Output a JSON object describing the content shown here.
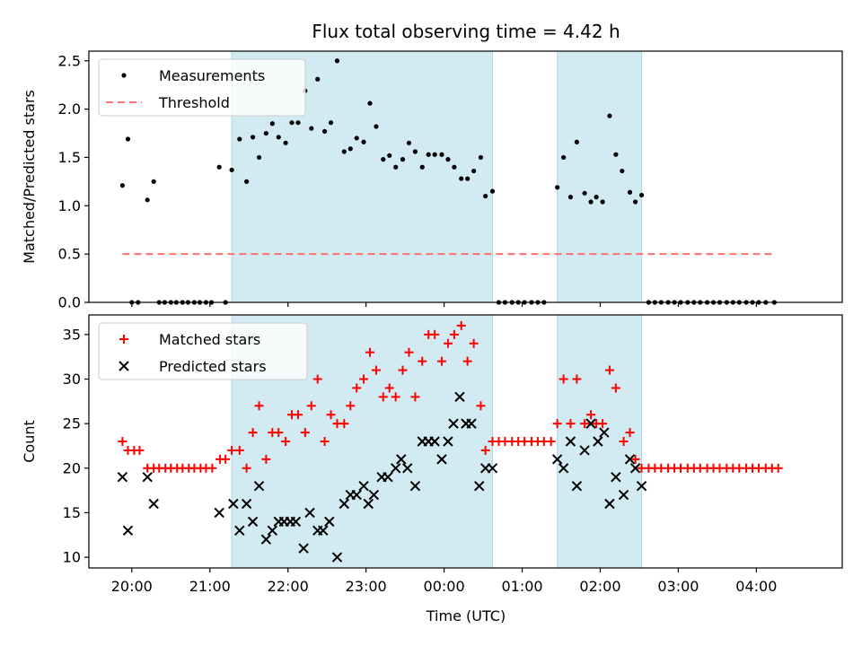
{
  "title": "Flux total observing time = 4.42 h",
  "colors": {
    "measurement": "#000000",
    "threshold": "#ff7070",
    "matched": "#ff0000",
    "predicted": "#000000",
    "span": "#add8e6"
  },
  "x_ticks": [
    "20:00",
    "21:00",
    "22:00",
    "23:00",
    "00:00",
    "01:00",
    "02:00",
    "03:00",
    "04:00"
  ],
  "xlabel": "Time (UTC)",
  "chart_data": [
    {
      "type": "scatter",
      "title": "Flux total observing time = 4.42 h",
      "xlabel": "",
      "ylabel": "Matched/Predicted stars",
      "x_unit": "hours since 20:00 UTC",
      "xlim": [
        -0.55,
        9.1
      ],
      "ylim": [
        0,
        2.6
      ],
      "y_ticks": [
        0.0,
        0.5,
        1.0,
        1.5,
        2.0,
        2.5
      ],
      "y_tick_labels": [
        "0.0",
        "0.5",
        "1.0",
        "1.5",
        "2.0",
        "2.5"
      ],
      "shaded_spans": [
        [
          1.28,
          4.62
        ],
        [
          5.45,
          6.53
        ]
      ],
      "legend": {
        "location": "upper left",
        "entries": [
          "Measurements",
          "Threshold"
        ]
      },
      "threshold": {
        "name": "Threshold",
        "y": 0.5,
        "x_range": [
          -0.12,
          8.2
        ]
      },
      "series": [
        {
          "name": "Measurements",
          "points": [
            [
              -0.12,
              1.21
            ],
            [
              -0.05,
              1.69
            ],
            [
              0.0,
              0.0
            ],
            [
              0.08,
              0.0
            ],
            [
              0.2,
              1.06
            ],
            [
              0.28,
              1.25
            ],
            [
              0.35,
              0.0
            ],
            [
              0.42,
              0.0
            ],
            [
              0.5,
              0.0
            ],
            [
              0.57,
              0.0
            ],
            [
              0.65,
              0.0
            ],
            [
              0.72,
              0.0
            ],
            [
              0.8,
              0.0
            ],
            [
              0.87,
              0.0
            ],
            [
              0.95,
              0.0
            ],
            [
              1.02,
              0.0
            ],
            [
              1.12,
              1.4
            ],
            [
              1.2,
              0.0
            ],
            [
              1.28,
              1.37
            ],
            [
              1.38,
              1.69
            ],
            [
              1.47,
              1.25
            ],
            [
              1.55,
              1.71
            ],
            [
              1.63,
              1.5
            ],
            [
              1.72,
              1.75
            ],
            [
              1.8,
              1.85
            ],
            [
              1.88,
              1.71
            ],
            [
              1.97,
              1.65
            ],
            [
              2.05,
              1.86
            ],
            [
              2.13,
              1.86
            ],
            [
              2.22,
              2.19
            ],
            [
              2.3,
              1.8
            ],
            [
              2.38,
              2.31
            ],
            [
              2.47,
              1.77
            ],
            [
              2.55,
              1.86
            ],
            [
              2.63,
              2.5
            ],
            [
              2.72,
              1.56
            ],
            [
              2.8,
              1.59
            ],
            [
              2.88,
              1.7
            ],
            [
              2.97,
              1.66
            ],
            [
              3.05,
              2.06
            ],
            [
              3.13,
              1.82
            ],
            [
              3.22,
              1.48
            ],
            [
              3.3,
              1.52
            ],
            [
              3.38,
              1.4
            ],
            [
              3.47,
              1.48
            ],
            [
              3.55,
              1.65
            ],
            [
              3.63,
              1.56
            ],
            [
              3.72,
              1.4
            ],
            [
              3.8,
              1.53
            ],
            [
              3.88,
              1.53
            ],
            [
              3.97,
              1.53
            ],
            [
              4.05,
              1.48
            ],
            [
              4.13,
              1.4
            ],
            [
              4.22,
              1.28
            ],
            [
              4.3,
              1.28
            ],
            [
              4.38,
              1.36
            ],
            [
              4.47,
              1.5
            ],
            [
              4.53,
              1.1
            ],
            [
              4.62,
              1.15
            ],
            [
              4.7,
              0.0
            ],
            [
              4.78,
              0.0
            ],
            [
              4.87,
              0.0
            ],
            [
              4.95,
              0.0
            ],
            [
              5.03,
              0.0
            ],
            [
              5.12,
              0.0
            ],
            [
              5.2,
              0.0
            ],
            [
              5.28,
              0.0
            ],
            [
              5.45,
              1.19
            ],
            [
              5.53,
              1.5
            ],
            [
              5.62,
              1.09
            ],
            [
              5.7,
              1.66
            ],
            [
              5.8,
              1.13
            ],
            [
              5.88,
              1.04
            ],
            [
              5.95,
              1.09
            ],
            [
              6.03,
              1.04
            ],
            [
              6.12,
              1.93
            ],
            [
              6.2,
              1.53
            ],
            [
              6.28,
              1.36
            ],
            [
              6.38,
              1.14
            ],
            [
              6.45,
              1.04
            ],
            [
              6.53,
              1.11
            ],
            [
              6.62,
              0.0
            ],
            [
              6.7,
              0.0
            ],
            [
              6.78,
              0.0
            ],
            [
              6.87,
              0.0
            ],
            [
              6.95,
              0.0
            ],
            [
              7.03,
              0.0
            ],
            [
              7.12,
              0.0
            ],
            [
              7.2,
              0.0
            ],
            [
              7.28,
              0.0
            ],
            [
              7.37,
              0.0
            ],
            [
              7.45,
              0.0
            ],
            [
              7.53,
              0.0
            ],
            [
              7.62,
              0.0
            ],
            [
              7.7,
              0.0
            ],
            [
              7.78,
              0.0
            ],
            [
              7.87,
              0.0
            ],
            [
              7.95,
              0.0
            ],
            [
              8.03,
              0.0
            ],
            [
              8.12,
              0.0
            ],
            [
              8.23,
              0.0
            ]
          ]
        }
      ]
    },
    {
      "type": "scatter",
      "xlabel": "Time (UTC)",
      "ylabel": "Count",
      "x_unit": "hours since 20:00 UTC",
      "xlim": [
        -0.55,
        9.1
      ],
      "ylim": [
        8.8,
        37.2
      ],
      "y_ticks": [
        10,
        15,
        20,
        25,
        30,
        35
      ],
      "y_tick_labels": [
        "10",
        "15",
        "20",
        "25",
        "30",
        "35"
      ],
      "shaded_spans": [
        [
          1.28,
          4.62
        ],
        [
          5.45,
          6.53
        ]
      ],
      "legend": {
        "location": "upper left",
        "entries": [
          "Matched stars",
          "Predicted stars"
        ]
      },
      "series": [
        {
          "name": "Matched stars",
          "marker": "plus",
          "points": [
            [
              -0.12,
              23
            ],
            [
              -0.05,
              22
            ],
            [
              0.03,
              22
            ],
            [
              0.1,
              22
            ],
            [
              0.2,
              20
            ],
            [
              0.28,
              20
            ],
            [
              0.35,
              20
            ],
            [
              0.43,
              20
            ],
            [
              0.5,
              20
            ],
            [
              0.58,
              20
            ],
            [
              0.65,
              20
            ],
            [
              0.73,
              20
            ],
            [
              0.8,
              20
            ],
            [
              0.88,
              20
            ],
            [
              0.95,
              20
            ],
            [
              1.03,
              20
            ],
            [
              1.13,
              21
            ],
            [
              1.2,
              21
            ],
            [
              1.28,
              22
            ],
            [
              1.38,
              22
            ],
            [
              1.47,
              20
            ],
            [
              1.55,
              24
            ],
            [
              1.63,
              27
            ],
            [
              1.72,
              21
            ],
            [
              1.8,
              24
            ],
            [
              1.88,
              24
            ],
            [
              1.97,
              23
            ],
            [
              2.05,
              26
            ],
            [
              2.13,
              26
            ],
            [
              2.22,
              24
            ],
            [
              2.3,
              27
            ],
            [
              2.38,
              30
            ],
            [
              2.47,
              23
            ],
            [
              2.55,
              26
            ],
            [
              2.63,
              25
            ],
            [
              2.72,
              25
            ],
            [
              2.8,
              27
            ],
            [
              2.88,
              29
            ],
            [
              2.97,
              30
            ],
            [
              3.05,
              33
            ],
            [
              3.13,
              31
            ],
            [
              3.22,
              28
            ],
            [
              3.3,
              29
            ],
            [
              3.38,
              28
            ],
            [
              3.47,
              31
            ],
            [
              3.55,
              33
            ],
            [
              3.63,
              28
            ],
            [
              3.72,
              32
            ],
            [
              3.8,
              35
            ],
            [
              3.88,
              35
            ],
            [
              3.97,
              32
            ],
            [
              4.05,
              34
            ],
            [
              4.13,
              35
            ],
            [
              4.22,
              36
            ],
            [
              4.3,
              32
            ],
            [
              4.38,
              34
            ],
            [
              4.47,
              27
            ],
            [
              4.53,
              22
            ],
            [
              4.62,
              23
            ],
            [
              4.7,
              23
            ],
            [
              4.78,
              23
            ],
            [
              4.87,
              23
            ],
            [
              4.95,
              23
            ],
            [
              5.03,
              23
            ],
            [
              5.12,
              23
            ],
            [
              5.2,
              23
            ],
            [
              5.28,
              23
            ],
            [
              5.37,
              23
            ],
            [
              5.45,
              25
            ],
            [
              5.53,
              30
            ],
            [
              5.62,
              25
            ],
            [
              5.7,
              30
            ],
            [
              5.8,
              25
            ],
            [
              5.88,
              26
            ],
            [
              5.95,
              25
            ],
            [
              6.03,
              25
            ],
            [
              6.12,
              31
            ],
            [
              6.2,
              29
            ],
            [
              6.3,
              23
            ],
            [
              6.38,
              24
            ],
            [
              6.45,
              21
            ],
            [
              6.53,
              20
            ],
            [
              6.62,
              20
            ],
            [
              6.7,
              20
            ],
            [
              6.78,
              20
            ],
            [
              6.87,
              20
            ],
            [
              6.95,
              20
            ],
            [
              7.03,
              20
            ],
            [
              7.12,
              20
            ],
            [
              7.2,
              20
            ],
            [
              7.28,
              20
            ],
            [
              7.37,
              20
            ],
            [
              7.45,
              20
            ],
            [
              7.53,
              20
            ],
            [
              7.62,
              20
            ],
            [
              7.7,
              20
            ],
            [
              7.78,
              20
            ],
            [
              7.87,
              20
            ],
            [
              7.95,
              20
            ],
            [
              8.03,
              20
            ],
            [
              8.12,
              20
            ],
            [
              8.2,
              20
            ],
            [
              8.28,
              20
            ]
          ]
        },
        {
          "name": "Predicted stars",
          "marker": "x",
          "points": [
            [
              -0.12,
              19
            ],
            [
              -0.05,
              13
            ],
            [
              0.2,
              19
            ],
            [
              0.28,
              16
            ],
            [
              1.12,
              15
            ],
            [
              1.3,
              16
            ],
            [
              1.38,
              13
            ],
            [
              1.47,
              16
            ],
            [
              1.55,
              14
            ],
            [
              1.63,
              18
            ],
            [
              1.72,
              12
            ],
            [
              1.8,
              13
            ],
            [
              1.88,
              14
            ],
            [
              1.95,
              14
            ],
            [
              2.03,
              14
            ],
            [
              2.1,
              14
            ],
            [
              2.2,
              11
            ],
            [
              2.28,
              15
            ],
            [
              2.38,
              13
            ],
            [
              2.45,
              13
            ],
            [
              2.53,
              14
            ],
            [
              2.63,
              10
            ],
            [
              2.72,
              16
            ],
            [
              2.8,
              17
            ],
            [
              2.88,
              17
            ],
            [
              2.97,
              18
            ],
            [
              3.03,
              16
            ],
            [
              3.1,
              17
            ],
            [
              3.2,
              19
            ],
            [
              3.28,
              19
            ],
            [
              3.38,
              20
            ],
            [
              3.45,
              21
            ],
            [
              3.53,
              20
            ],
            [
              3.63,
              18
            ],
            [
              3.72,
              23
            ],
            [
              3.8,
              23
            ],
            [
              3.88,
              23
            ],
            [
              3.97,
              21
            ],
            [
              4.05,
              23
            ],
            [
              4.12,
              25
            ],
            [
              4.2,
              28
            ],
            [
              4.28,
              25
            ],
            [
              4.35,
              25
            ],
            [
              4.45,
              18
            ],
            [
              4.53,
              20
            ],
            [
              4.62,
              20
            ],
            [
              5.45,
              21
            ],
            [
              5.53,
              20
            ],
            [
              5.62,
              23
            ],
            [
              5.7,
              18
            ],
            [
              5.8,
              22
            ],
            [
              5.88,
              25
            ],
            [
              5.97,
              23
            ],
            [
              6.05,
              24
            ],
            [
              6.12,
              16
            ],
            [
              6.2,
              19
            ],
            [
              6.3,
              17
            ],
            [
              6.38,
              21
            ],
            [
              6.45,
              20
            ],
            [
              6.53,
              18
            ]
          ]
        }
      ]
    }
  ]
}
